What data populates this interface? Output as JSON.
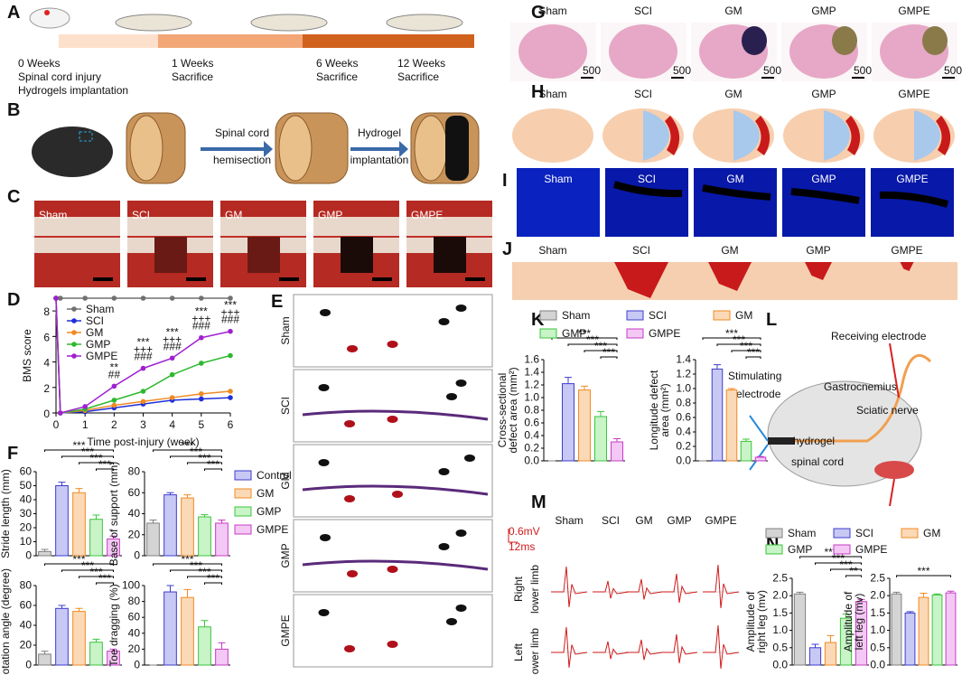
{
  "letters": [
    "A",
    "B",
    "C",
    "D",
    "E",
    "F",
    "G",
    "H",
    "I",
    "J",
    "K",
    "L",
    "M",
    "N"
  ],
  "A": {
    "timeline": [
      {
        "week": "0 Weeks",
        "lines": [
          "Spinal cord injury",
          "Hydrogels implantation"
        ]
      },
      {
        "week": "1 Weeks",
        "lines": [
          "Sacrifice"
        ]
      },
      {
        "week": "6 Weeks",
        "lines": [
          "Sacrifice"
        ]
      },
      {
        "week": "12 Weeks",
        "lines": [
          "Sacrifice"
        ]
      }
    ]
  },
  "B": {
    "step1": [
      "Spinal cord",
      "hemisection"
    ],
    "step2": [
      "Hydrogel",
      "implantation"
    ]
  },
  "C": {
    "labels": [
      "Sham",
      "SCI",
      "GM",
      "GMP",
      "GMPE"
    ]
  },
  "E": {
    "labels": [
      "Sham",
      "SCI",
      "GM",
      "GMP",
      "GMPE"
    ]
  },
  "G": {
    "labels": [
      "Sham",
      "SCI",
      "GM",
      "GMP",
      "GMPE"
    ],
    "scale_bar": "500μm"
  },
  "H": {
    "labels": [
      "Sham",
      "SCI",
      "GM",
      "GMP",
      "GMPE"
    ]
  },
  "I": {
    "labels": [
      "Sham",
      "SCI",
      "GM",
      "GMP",
      "GMPE"
    ]
  },
  "J": {
    "labels": [
      "Sham",
      "SCI",
      "GM",
      "GMP",
      "GMPE"
    ]
  },
  "L": {
    "labels": [
      "Receiving electrode",
      "Stimulating",
      "electrode",
      "Gastrocnemius",
      "Sciatic nerve",
      "hydrogel",
      "spinal cord"
    ]
  },
  "M": {
    "labels": [
      "Sham",
      "SCI",
      "GM",
      "GMP",
      "GMPE"
    ],
    "scale_y": "0.6mV",
    "scale_x": "12ms",
    "rows": [
      [
        "Right",
        "lower limb"
      ],
      [
        "Left",
        "lower limb"
      ]
    ]
  },
  "chart_data": [
    {
      "type": "line",
      "ylabel": "BMS score",
      "xlabel": "Time post-injury (week)",
      "x": [
        0,
        0.15,
        1,
        2,
        3,
        4,
        5,
        6
      ],
      "xlim": [
        0,
        6
      ],
      "xticks": [
        0,
        1,
        2,
        3,
        4,
        5,
        6
      ],
      "ylim": [
        0,
        9
      ],
      "yticks": [
        0,
        2,
        4,
        6,
        8
      ],
      "legend": "upper left",
      "series": [
        {
          "name": "Sham",
          "color": "#707070",
          "values": [
            9,
            9,
            9,
            9,
            9,
            9,
            9,
            9
          ]
        },
        {
          "name": "SCI",
          "color": "#1f2fd8",
          "values": [
            9,
            0,
            0.1,
            0.4,
            0.7,
            1.0,
            1.1,
            1.2
          ]
        },
        {
          "name": "GM",
          "color": "#f08a24",
          "values": [
            9,
            0,
            0.2,
            0.6,
            0.9,
            1.2,
            1.5,
            1.7
          ]
        },
        {
          "name": "GMP",
          "color": "#2fb82f",
          "values": [
            9,
            0,
            0.3,
            1.0,
            1.7,
            3.0,
            3.9,
            4.5
          ]
        },
        {
          "name": "GMPE",
          "color": "#a020d0",
          "values": [
            9,
            0,
            0.5,
            2.1,
            3.5,
            4.3,
            5.9,
            6.4
          ]
        }
      ],
      "annotations": [
        {
          "x": 2,
          "lines": [
            "**",
            "##"
          ]
        },
        {
          "x": 3,
          "lines": [
            "***",
            "+++",
            "###"
          ]
        },
        {
          "x": 4,
          "lines": [
            "***",
            "+++",
            "###"
          ]
        },
        {
          "x": 5,
          "lines": [
            "***",
            "+++",
            "###"
          ]
        },
        {
          "x": 6,
          "lines": [
            "***",
            "+++",
            "###"
          ]
        }
      ]
    },
    {
      "type": "bar",
      "ylabel": [
        "Stride length (mm)"
      ],
      "values": [
        3,
        50,
        45,
        26,
        12
      ],
      "errors": [
        1.5,
        2.5,
        3,
        3,
        2
      ],
      "ylim": [
        0,
        60
      ],
      "yticks": [
        0,
        10,
        20,
        30,
        40,
        50,
        60
      ],
      "colors": [
        "#808080",
        "#3c3cd0",
        "#f08a24",
        "#3cc43c",
        "#c43cc4"
      ],
      "fill_colors": [
        "#d4d4d4",
        "#c8c8f4",
        "#fbd9b6",
        "#c8f4c8",
        "#f4c8f4"
      ],
      "significance": [
        "***",
        "***",
        "***",
        "***"
      ],
      "legend": {
        "names": [
          "Control",
          "GM",
          "GMP",
          "GMPE"
        ],
        "colors": [
          "#3c3cd0",
          "#f08a24",
          "#3cc43c",
          "#c43cc4"
        ],
        "fill_colors": [
          "#c8c8f4",
          "#fbd9b6",
          "#c8f4c8",
          "#f4c8f4"
        ]
      }
    },
    {
      "type": "bar",
      "ylabel": [
        "Base of support (mm)"
      ],
      "values": [
        31,
        58,
        55,
        37,
        31
      ],
      "errors": [
        3,
        2,
        3,
        2,
        3
      ],
      "ylim": [
        0,
        80
      ],
      "yticks": [
        0,
        20,
        40,
        60,
        80
      ],
      "colors": [
        "#808080",
        "#3c3cd0",
        "#f08a24",
        "#3cc43c",
        "#c43cc4"
      ],
      "fill_colors": [
        "#d4d4d4",
        "#c8c8f4",
        "#fbd9b6",
        "#c8f4c8",
        "#f4c8f4"
      ],
      "significance": [
        "***",
        "***",
        "***",
        "***"
      ]
    },
    {
      "type": "bar",
      "ylabel": [
        "Rotation angle (degree)"
      ],
      "values": [
        11,
        57,
        54,
        23,
        14
      ],
      "errors": [
        3,
        3,
        3,
        3,
        2
      ],
      "ylim": [
        0,
        80
      ],
      "yticks": [
        0,
        20,
        40,
        60,
        80
      ],
      "colors": [
        "#808080",
        "#3c3cd0",
        "#f08a24",
        "#3cc43c",
        "#c43cc4"
      ],
      "fill_colors": [
        "#d4d4d4",
        "#c8c8f4",
        "#fbd9b6",
        "#c8f4c8",
        "#f4c8f4"
      ],
      "significance": [
        "***",
        "***",
        "***",
        "***"
      ]
    },
    {
      "type": "bar",
      "ylabel": [
        "Toe dragging (%)"
      ],
      "values": [
        0,
        92,
        85,
        48,
        20
      ],
      "errors": [
        0,
        8,
        10,
        8,
        8
      ],
      "ylim": [
        0,
        100
      ],
      "yticks": [
        0,
        20,
        40,
        60,
        80,
        100
      ],
      "colors": [
        "#808080",
        "#3c3cd0",
        "#f08a24",
        "#3cc43c",
        "#c43cc4"
      ],
      "fill_colors": [
        "#d4d4d4",
        "#c8c8f4",
        "#fbd9b6",
        "#c8f4c8",
        "#f4c8f4"
      ],
      "significance": [
        "***",
        "***",
        "***",
        "***"
      ]
    },
    {
      "type": "bar",
      "ylabel": [
        "Cross-sectional",
        "defect area (mm²)"
      ],
      "values": [
        0,
        1.22,
        1.12,
        0.7,
        0.3
      ],
      "errors": [
        0,
        0.1,
        0.06,
        0.08,
        0.05
      ],
      "ylim": [
        0,
        1.6
      ],
      "yticks": [
        {
          "value": 0,
          "label": "0.0"
        },
        0.2,
        0.4,
        0.6,
        0.8,
        {
          "value": 1,
          "label": "1.0"
        },
        1.2,
        1.4,
        1.6
      ],
      "colors": [
        "#808080",
        "#3c3cd0",
        "#f08a24",
        "#3cc43c",
        "#c43cc4"
      ],
      "fill_colors": [
        "#d4d4d4",
        "#c8c8f4",
        "#fbd9b6",
        "#c8f4c8",
        "#f4c8f4"
      ],
      "significance": [
        "***",
        "***",
        "***",
        "***"
      ],
      "legend": {
        "names": [
          "Sham",
          "SCI",
          "GM",
          "GMP",
          "GMPE"
        ],
        "colors": [
          "#808080",
          "#3c3cd0",
          "#f08a24",
          "#3cc43c",
          "#c43cc4"
        ],
        "fill_colors": [
          "#d4d4d4",
          "#c8c8f4",
          "#fbd9b6",
          "#c8f4c8",
          "#f4c8f4"
        ]
      }
    },
    {
      "type": "bar",
      "ylabel": [
        "Longitude defect",
        "area (mm²)"
      ],
      "values": [
        0,
        1.27,
        0.98,
        0.27,
        0.05
      ],
      "errors": [
        0,
        0.06,
        0.02,
        0.03,
        0.01
      ],
      "ylim": [
        0,
        1.4
      ],
      "yticks": [
        {
          "value": 0,
          "label": "0.0"
        },
        0.2,
        0.4,
        0.6,
        0.8,
        {
          "value": 1,
          "label": "1.0"
        },
        1.2,
        1.4
      ],
      "colors": [
        "#808080",
        "#3c3cd0",
        "#f08a24",
        "#3cc43c",
        "#c43cc4"
      ],
      "fill_colors": [
        "#d4d4d4",
        "#c8c8f4",
        "#fbd9b6",
        "#c8f4c8",
        "#f4c8f4"
      ],
      "significance": [
        "***",
        "***",
        "***",
        "***"
      ]
    },
    {
      "type": "bar",
      "ylabel": [
        "Amplitude of",
        "right leg (mv)"
      ],
      "values": [
        2.05,
        0.5,
        0.65,
        1.35,
        1.83
      ],
      "errors": [
        0.05,
        0.1,
        0.2,
        0.12,
        0.06
      ],
      "ylim": [
        0,
        2.5
      ],
      "yticks": [
        {
          "value": 0,
          "label": "0.0"
        },
        0.5,
        {
          "value": 1,
          "label": "1.0"
        },
        1.5,
        {
          "value": 2,
          "label": "2.0"
        },
        2.5
      ],
      "colors": [
        "#808080",
        "#3c3cd0",
        "#f08a24",
        "#3cc43c",
        "#c43cc4"
      ],
      "fill_colors": [
        "#d4d4d4",
        "#c8c8f4",
        "#fbd9b6",
        "#c8f4c8",
        "#f4c8f4"
      ],
      "significance": [
        "***",
        "***",
        "***",
        "**"
      ],
      "legend": {
        "names": [
          "Sham",
          "SCI",
          "GM",
          "GMP",
          "GMPE"
        ],
        "colors": [
          "#808080",
          "#3c3cd0",
          "#f08a24",
          "#3cc43c",
          "#c43cc4"
        ],
        "fill_colors": [
          "#d4d4d4",
          "#c8c8f4",
          "#fbd9b6",
          "#c8f4c8",
          "#f4c8f4"
        ]
      }
    },
    {
      "type": "bar",
      "ylabel": [
        "Amplitude of",
        "left leg (mv)"
      ],
      "values": [
        2.05,
        1.5,
        1.95,
        2.02,
        2.08
      ],
      "errors": [
        0.05,
        0.04,
        0.12,
        0.03,
        0.05
      ],
      "ylim": [
        0,
        2.5
      ],
      "yticks": [
        {
          "value": 0,
          "label": "0.0"
        },
        0.5,
        {
          "value": 1,
          "label": "1.0"
        },
        1.5,
        {
          "value": 2,
          "label": "2.0"
        },
        2.5
      ],
      "colors": [
        "#808080",
        "#3c3cd0",
        "#f08a24",
        "#3cc43c",
        "#c43cc4"
      ],
      "fill_colors": [
        "#d4d4d4",
        "#c8c8f4",
        "#fbd9b6",
        "#c8f4c8",
        "#f4c8f4"
      ],
      "significance": [
        "***"
      ]
    }
  ]
}
